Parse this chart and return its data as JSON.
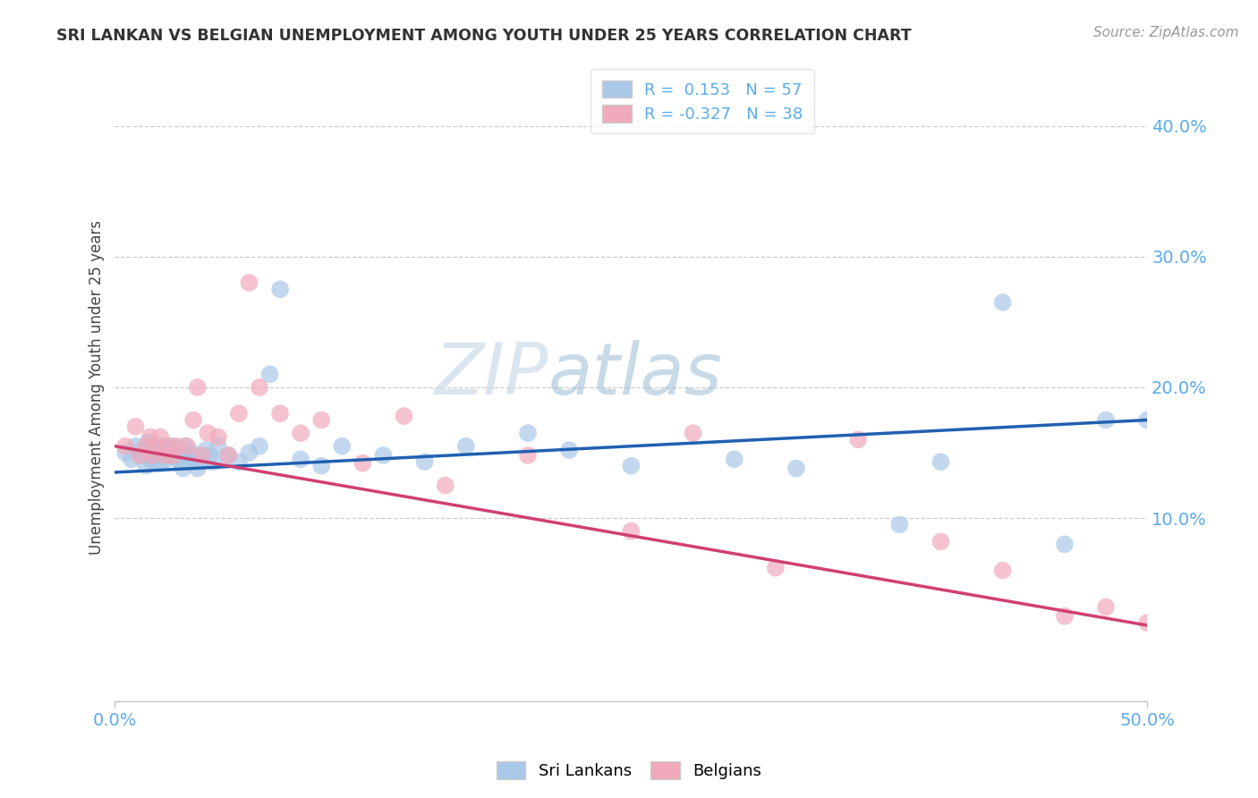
{
  "title": "SRI LANKAN VS BELGIAN UNEMPLOYMENT AMONG YOUTH UNDER 25 YEARS CORRELATION CHART",
  "source": "Source: ZipAtlas.com",
  "ylabel": "Unemployment Among Youth under 25 years",
  "xlim": [
    0.0,
    0.5
  ],
  "ylim": [
    -0.04,
    0.44
  ],
  "xticks": [
    0.0,
    0.5
  ],
  "yticks": [
    0.1,
    0.2,
    0.3,
    0.4
  ],
  "ytick_labels": [
    "10.0%",
    "20.0%",
    "30.0%",
    "40.0%"
  ],
  "xtick_labels": [
    "0.0%",
    "50.0%"
  ],
  "blue_R": 0.153,
  "blue_N": 57,
  "pink_R": -0.327,
  "pink_N": 38,
  "blue_color": "#aac8e8",
  "pink_color": "#f0aabb",
  "blue_line_color": "#2060b0",
  "pink_line_color": "#d04070",
  "watermark_zip": "ZIP",
  "watermark_atlas": "atlas",
  "blue_line_y0": 0.135,
  "blue_line_y1": 0.175,
  "pink_line_y0": 0.155,
  "pink_line_y1": 0.018,
  "blue_scatter_x": [
    0.005,
    0.008,
    0.01,
    0.012,
    0.013,
    0.015,
    0.016,
    0.017,
    0.018,
    0.019,
    0.02,
    0.021,
    0.022,
    0.023,
    0.024,
    0.025,
    0.026,
    0.027,
    0.028,
    0.03,
    0.031,
    0.032,
    0.033,
    0.034,
    0.035,
    0.036,
    0.037,
    0.038,
    0.04,
    0.042,
    0.044,
    0.046,
    0.048,
    0.05,
    0.055,
    0.06,
    0.065,
    0.07,
    0.075,
    0.08,
    0.09,
    0.1,
    0.11,
    0.13,
    0.15,
    0.17,
    0.2,
    0.22,
    0.25,
    0.3,
    0.33,
    0.38,
    0.4,
    0.43,
    0.46,
    0.48,
    0.5
  ],
  "blue_scatter_y": [
    0.15,
    0.145,
    0.155,
    0.148,
    0.152,
    0.14,
    0.158,
    0.145,
    0.15,
    0.143,
    0.155,
    0.148,
    0.142,
    0.155,
    0.15,
    0.145,
    0.152,
    0.148,
    0.155,
    0.145,
    0.15,
    0.143,
    0.138,
    0.155,
    0.148,
    0.143,
    0.15,
    0.145,
    0.138,
    0.143,
    0.152,
    0.148,
    0.143,
    0.155,
    0.148,
    0.143,
    0.15,
    0.155,
    0.21,
    0.275,
    0.145,
    0.14,
    0.155,
    0.148,
    0.143,
    0.155,
    0.165,
    0.152,
    0.14,
    0.145,
    0.138,
    0.095,
    0.143,
    0.265,
    0.08,
    0.175,
    0.175
  ],
  "pink_scatter_x": [
    0.005,
    0.01,
    0.012,
    0.015,
    0.017,
    0.018,
    0.02,
    0.022,
    0.024,
    0.026,
    0.028,
    0.03,
    0.035,
    0.038,
    0.04,
    0.042,
    0.045,
    0.05,
    0.055,
    0.06,
    0.065,
    0.07,
    0.08,
    0.09,
    0.1,
    0.12,
    0.14,
    0.16,
    0.2,
    0.25,
    0.28,
    0.32,
    0.36,
    0.4,
    0.43,
    0.46,
    0.48,
    0.5
  ],
  "pink_scatter_y": [
    0.155,
    0.17,
    0.148,
    0.155,
    0.162,
    0.148,
    0.155,
    0.162,
    0.148,
    0.155,
    0.148,
    0.155,
    0.155,
    0.175,
    0.2,
    0.148,
    0.165,
    0.162,
    0.148,
    0.18,
    0.28,
    0.2,
    0.18,
    0.165,
    0.175,
    0.142,
    0.178,
    0.125,
    0.148,
    0.09,
    0.165,
    0.062,
    0.16,
    0.082,
    0.06,
    0.025,
    0.032,
    0.02
  ]
}
